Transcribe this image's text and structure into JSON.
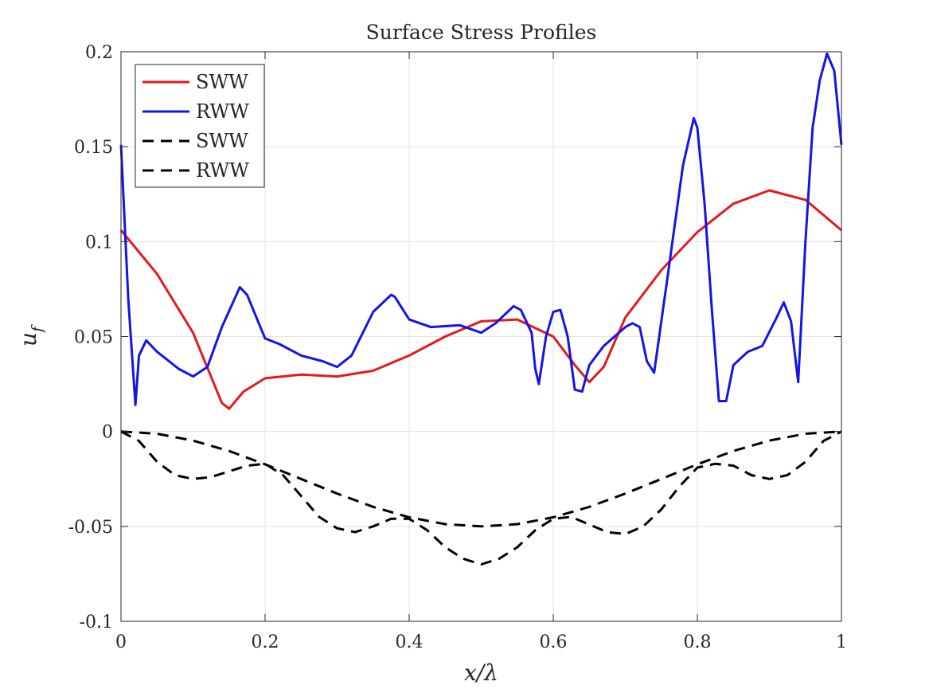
{
  "chart_data": {
    "type": "line",
    "title": "Surface Stress Profiles",
    "xlabel": "x/λ",
    "ylabel": "u_f",
    "ylabel_main": "u",
    "ylabel_sub": "f",
    "xlim": [
      0,
      1
    ],
    "ylim": [
      -0.1,
      0.2
    ],
    "xticks": [
      0,
      0.2,
      0.4,
      0.6,
      0.8,
      1
    ],
    "xtick_labels": [
      "0",
      "0.2",
      "0.4",
      "0.6",
      "0.8",
      "1"
    ],
    "yticks": [
      -0.1,
      -0.05,
      0,
      0.05,
      0.1,
      0.15,
      0.2
    ],
    "ytick_labels": [
      "-0.1",
      "-0.05",
      "0",
      "0.05",
      "0.1",
      "0.15",
      "0.2"
    ],
    "grid": true,
    "legend_position": "top-left",
    "series": [
      {
        "name": "SWW",
        "color": "#e41a1c",
        "dash": "solid",
        "x": [
          0,
          0.05,
          0.1,
          0.14,
          0.15,
          0.17,
          0.2,
          0.25,
          0.3,
          0.35,
          0.4,
          0.45,
          0.5,
          0.55,
          0.6,
          0.63,
          0.65,
          0.67,
          0.7,
          0.75,
          0.8,
          0.85,
          0.9,
          0.95,
          1.0
        ],
        "y": [
          0.106,
          0.083,
          0.052,
          0.015,
          0.012,
          0.021,
          0.028,
          0.03,
          0.029,
          0.032,
          0.04,
          0.05,
          0.058,
          0.059,
          0.05,
          0.035,
          0.026,
          0.034,
          0.06,
          0.085,
          0.105,
          0.12,
          0.127,
          0.122,
          0.106
        ]
      },
      {
        "name": "RWW",
        "color": "#1414e6",
        "dash": "solid",
        "x": [
          0,
          0.01,
          0.02,
          0.025,
          0.035,
          0.05,
          0.08,
          0.1,
          0.12,
          0.14,
          0.165,
          0.175,
          0.2,
          0.22,
          0.25,
          0.28,
          0.3,
          0.32,
          0.35,
          0.375,
          0.38,
          0.4,
          0.43,
          0.47,
          0.5,
          0.52,
          0.545,
          0.555,
          0.57,
          0.575,
          0.58,
          0.59,
          0.6,
          0.61,
          0.62,
          0.63,
          0.64,
          0.65,
          0.67,
          0.7,
          0.71,
          0.72,
          0.73,
          0.74,
          0.76,
          0.78,
          0.795,
          0.8,
          0.81,
          0.82,
          0.83,
          0.84,
          0.85,
          0.87,
          0.89,
          0.91,
          0.92,
          0.93,
          0.94,
          0.95,
          0.96,
          0.97,
          0.98,
          0.99,
          1.0
        ],
        "y": [
          0.151,
          0.07,
          0.014,
          0.04,
          0.048,
          0.042,
          0.033,
          0.029,
          0.034,
          0.055,
          0.076,
          0.072,
          0.049,
          0.046,
          0.04,
          0.037,
          0.034,
          0.04,
          0.063,
          0.072,
          0.071,
          0.059,
          0.055,
          0.056,
          0.052,
          0.057,
          0.066,
          0.064,
          0.052,
          0.033,
          0.025,
          0.05,
          0.063,
          0.064,
          0.05,
          0.022,
          0.021,
          0.035,
          0.045,
          0.055,
          0.057,
          0.055,
          0.037,
          0.031,
          0.085,
          0.14,
          0.165,
          0.16,
          0.12,
          0.065,
          0.016,
          0.016,
          0.035,
          0.042,
          0.045,
          0.06,
          0.068,
          0.058,
          0.026,
          0.1,
          0.16,
          0.185,
          0.199,
          0.19,
          0.151
        ]
      },
      {
        "name": "SWW",
        "color": "#000000",
        "dash": "dashed",
        "x": [
          0,
          0.05,
          0.1,
          0.15,
          0.2,
          0.25,
          0.3,
          0.35,
          0.4,
          0.45,
          0.5,
          0.55,
          0.6,
          0.65,
          0.7,
          0.75,
          0.8,
          0.85,
          0.9,
          0.95,
          1.0
        ],
        "y": [
          0,
          -0.0012,
          -0.0048,
          -0.0103,
          -0.0173,
          -0.025,
          -0.0327,
          -0.0397,
          -0.0452,
          -0.0488,
          -0.05,
          -0.0488,
          -0.0452,
          -0.0397,
          -0.0327,
          -0.025,
          -0.0173,
          -0.0103,
          -0.0048,
          -0.0012,
          0
        ]
      },
      {
        "name": "RWW",
        "color": "#000000",
        "dash": "dashed",
        "x": [
          0,
          0.025,
          0.05,
          0.075,
          0.1,
          0.125,
          0.15,
          0.175,
          0.2,
          0.225,
          0.25,
          0.275,
          0.3,
          0.325,
          0.35,
          0.375,
          0.4,
          0.425,
          0.45,
          0.475,
          0.5,
          0.525,
          0.55,
          0.575,
          0.6,
          0.625,
          0.65,
          0.675,
          0.7,
          0.725,
          0.75,
          0.775,
          0.8,
          0.825,
          0.85,
          0.875,
          0.9,
          0.925,
          0.95,
          0.975,
          1.0
        ],
        "y": [
          0,
          -0.005,
          -0.016,
          -0.023,
          -0.025,
          -0.024,
          -0.021,
          -0.018,
          -0.017,
          -0.023,
          -0.034,
          -0.045,
          -0.051,
          -0.053,
          -0.05,
          -0.046,
          -0.046,
          -0.052,
          -0.061,
          -0.067,
          -0.07,
          -0.067,
          -0.061,
          -0.052,
          -0.046,
          -0.045,
          -0.049,
          -0.053,
          -0.054,
          -0.05,
          -0.041,
          -0.029,
          -0.019,
          -0.017,
          -0.018,
          -0.023,
          -0.025,
          -0.023,
          -0.016,
          -0.005,
          0
        ]
      }
    ]
  }
}
